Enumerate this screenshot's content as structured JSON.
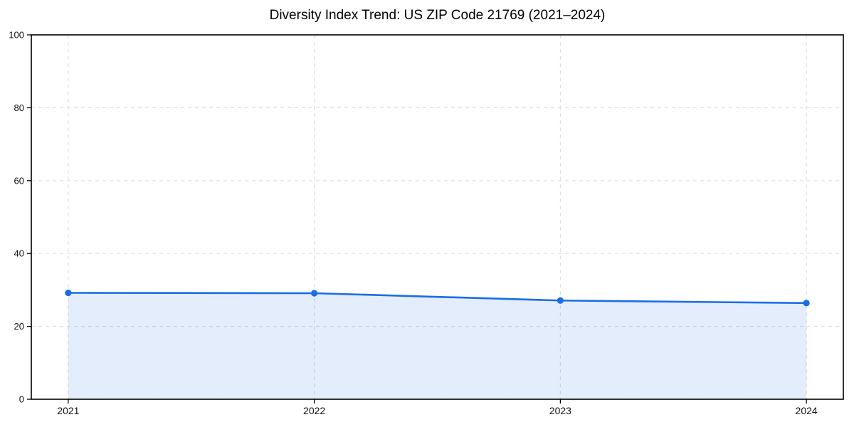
{
  "page": {
    "background_color": "#ffffff"
  },
  "chart_data": {
    "type": "area",
    "title": "Diversity Index Trend: US ZIP Code 21769 (2021–2024)",
    "xlabel": "",
    "ylabel": "",
    "x": [
      2021,
      2022,
      2023,
      2024
    ],
    "values": [
      29.2,
      29.1,
      27.1,
      26.4
    ],
    "series_name": "Diversity Index",
    "xticks": [
      2021,
      2022,
      2023,
      2024
    ],
    "xtick_labels": [
      "2021",
      "2022",
      "2023",
      "2024"
    ],
    "yticks": [
      0,
      20,
      40,
      60,
      80,
      100
    ],
    "ytick_labels": [
      "0",
      "20",
      "40",
      "60",
      "80",
      "100"
    ],
    "xlim": [
      2020.85,
      2024.15
    ],
    "ylim": [
      0,
      100
    ],
    "grid": true,
    "grid_style": "dashed",
    "legend": "none",
    "marker": "circle",
    "colors": {
      "line": "#1b6ce8",
      "marker": "#1b6ce8",
      "fill": "#1b6ce8",
      "grid": "#e0e0e0",
      "spine": "#000000",
      "tick_text": "#111111",
      "title_text": "#000000"
    },
    "fill_opacity": 0.12
  }
}
